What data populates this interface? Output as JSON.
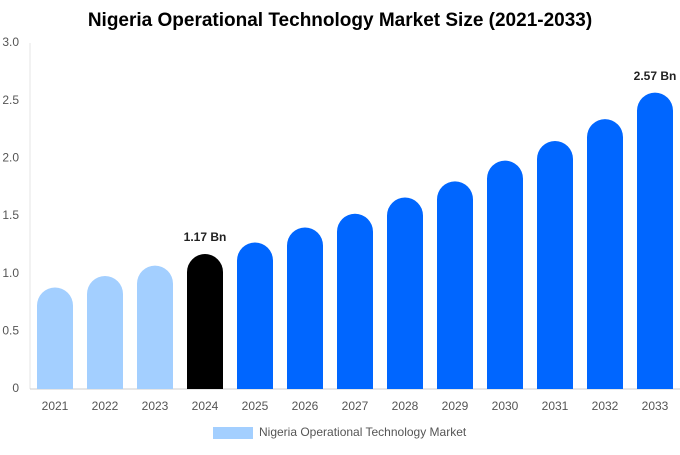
{
  "chart_data": {
    "type": "bar",
    "title": "Nigeria Operational Technology Market Size (2021-2033)",
    "categories": [
      "2021",
      "2022",
      "2023",
      "2024",
      "2025",
      "2026",
      "2027",
      "2028",
      "2029",
      "2030",
      "2031",
      "2032",
      "2033"
    ],
    "series": [
      {
        "name": "Nigeria Operational Technology Market",
        "color": "#a3cfff",
        "colors": [
          "#a3cfff",
          "#a3cfff",
          "#a3cfff",
          "#000000",
          "#0066ff",
          "#0066ff",
          "#0066ff",
          "#0066ff",
          "#0066ff",
          "#0066ff",
          "#0066ff",
          "#0066ff",
          "#0066ff"
        ],
        "values": [
          0.88,
          0.98,
          1.07,
          1.17,
          1.27,
          1.4,
          1.52,
          1.66,
          1.8,
          1.98,
          2.15,
          2.34,
          2.57
        ],
        "value_labels": [
          null,
          null,
          null,
          "1.17 Bn",
          null,
          null,
          null,
          null,
          null,
          null,
          null,
          null,
          "2.57 Bn"
        ]
      }
    ],
    "ylim": [
      0,
      3
    ],
    "yticks": [
      0,
      0.5,
      {
        "value": 1,
        "label": "1.0"
      },
      1.5,
      {
        "value": 2,
        "label": "2.0"
      },
      2.5,
      {
        "value": 3,
        "label": "3.0"
      }
    ],
    "grid": false
  }
}
